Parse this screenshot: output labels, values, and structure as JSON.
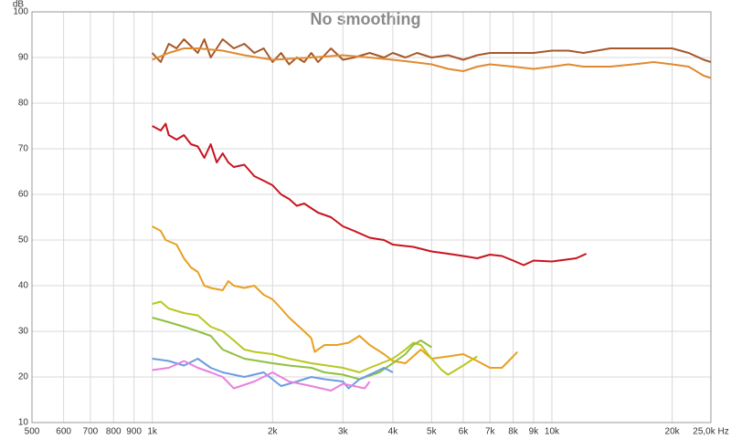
{
  "chart_data": {
    "type": "line",
    "title": "No smoothing",
    "y_label": "dB",
    "xscale": "log",
    "grid": true,
    "xlim": [
      500,
      25000
    ],
    "ylim": [
      10,
      100
    ],
    "xticks": [
      500,
      600,
      700,
      800,
      900,
      {
        "value": 1000,
        "label": "1k"
      },
      {
        "value": 2000,
        "label": "2k"
      },
      {
        "value": 3000,
        "label": "3k"
      },
      {
        "value": 4000,
        "label": "4k"
      },
      {
        "value": 5000,
        "label": "5k"
      },
      {
        "value": 6000,
        "label": "6k"
      },
      {
        "value": 7000,
        "label": "7k"
      },
      {
        "value": 8000,
        "label": "8k"
      },
      {
        "value": 9000,
        "label": "9k"
      },
      {
        "value": 10000,
        "label": "10k"
      },
      {
        "value": 20000,
        "label": "20k"
      },
      {
        "value": 25000,
        "label": "25,0k Hz"
      }
    ],
    "yticks": [
      10,
      20,
      30,
      40,
      50,
      60,
      70,
      80,
      90,
      100
    ],
    "series": [
      {
        "color": "#a6582a",
        "x": [
          1000,
          1050,
          1100,
          1150,
          1200,
          1300,
          1350,
          1400,
          1500,
          1600,
          1700,
          1800,
          1900,
          2000,
          2100,
          2200,
          2300,
          2400,
          2500,
          2600,
          2800,
          3000,
          3200,
          3500,
          3800,
          4000,
          4300,
          4600,
          5000,
          5500,
          6000,
          6500,
          7000,
          8000,
          9000,
          10000,
          11000,
          12000,
          14000,
          16000,
          18000,
          20000,
          22000,
          24000,
          25000
        ],
        "values": [
          91,
          89,
          93,
          92,
          94,
          91,
          94,
          90,
          94,
          92,
          93,
          91,
          92,
          89,
          91,
          88.5,
          90,
          89,
          91,
          89,
          92,
          89.5,
          90,
          91,
          90,
          91,
          90,
          91,
          90,
          90.5,
          89.5,
          90.5,
          91,
          91,
          91,
          91.5,
          91.5,
          91,
          92,
          92,
          92,
          92,
          91,
          89.5,
          89
        ]
      },
      {
        "color": "#df8a30",
        "x": [
          1000,
          1100,
          1200,
          1300,
          1500,
          1700,
          2000,
          2500,
          3000,
          3500,
          4000,
          4500,
          5000,
          5500,
          6000,
          6500,
          7000,
          8000,
          9000,
          10000,
          11000,
          12000,
          14000,
          16000,
          18000,
          20000,
          22000,
          24000,
          25000
        ],
        "values": [
          89.5,
          91,
          92,
          92,
          91.5,
          90.5,
          89.5,
          90,
          90.5,
          90,
          89.5,
          89,
          88.5,
          87.5,
          87,
          88,
          88.5,
          88,
          87.5,
          88,
          88.5,
          88,
          88,
          88.5,
          89,
          88.5,
          88,
          86,
          85.5
        ]
      },
      {
        "color": "#c8141e",
        "x": [
          1000,
          1050,
          1080,
          1100,
          1150,
          1200,
          1250,
          1300,
          1350,
          1400,
          1450,
          1500,
          1550,
          1600,
          1700,
          1800,
          1900,
          2000,
          2100,
          2200,
          2300,
          2400,
          2600,
          2800,
          3000,
          3200,
          3500,
          3800,
          4000,
          4500,
          5000,
          5500,
          6000,
          6500,
          7000,
          7500,
          8000,
          8500,
          9000,
          10000,
          11500,
          12200
        ],
        "values": [
          75,
          74,
          75.5,
          73,
          72,
          73,
          71,
          70.5,
          68,
          71,
          67,
          69,
          67,
          66,
          66.5,
          64,
          63,
          62,
          60,
          59,
          57.5,
          58,
          56,
          55,
          53,
          52,
          50.5,
          50,
          49,
          48.5,
          47.5,
          47,
          46.5,
          46,
          46.8,
          46.5,
          45.5,
          44.5,
          45.5,
          45.3,
          46,
          47
        ]
      },
      {
        "color": "#e8a020",
        "x": [
          1000,
          1050,
          1080,
          1150,
          1200,
          1250,
          1300,
          1350,
          1400,
          1500,
          1550,
          1600,
          1700,
          1800,
          1900,
          2000,
          2100,
          2200,
          2400,
          2500,
          2550,
          2700,
          2900,
          3100,
          3300,
          3500,
          3800,
          4000,
          4300,
          4700,
          5000,
          5500,
          6000,
          6500,
          7000,
          7500,
          8000,
          8200
        ],
        "values": [
          53,
          52,
          50,
          49,
          46,
          44,
          43,
          40,
          39.5,
          39,
          41,
          40,
          39.5,
          40,
          38,
          37,
          35,
          33,
          30,
          28.5,
          25.5,
          27,
          27,
          27.5,
          29,
          27,
          25,
          23.5,
          23,
          26,
          24,
          24.5,
          25,
          23.5,
          22,
          22,
          24.5,
          25.5
        ]
      },
      {
        "color": "#b8c820",
        "x": [
          1000,
          1050,
          1100,
          1200,
          1300,
          1400,
          1500,
          1600,
          1700,
          1800,
          2000,
          2200,
          2500,
          3000,
          3300,
          3500,
          4000,
          4300,
          4500,
          4700,
          5000,
          5300,
          5500,
          6000,
          6500
        ],
        "values": [
          36,
          36.5,
          35,
          34,
          33.5,
          31,
          30,
          28,
          26,
          25.5,
          25,
          24,
          23,
          22,
          21,
          22,
          24,
          26,
          27.5,
          27,
          24,
          21.5,
          20.5,
          22.5,
          24.5
        ]
      },
      {
        "color": "#90c040",
        "x": [
          1000,
          1100,
          1200,
          1300,
          1400,
          1500,
          1700,
          2000,
          2200,
          2500,
          2700,
          3000,
          3300,
          3700,
          4000,
          4300,
          4500,
          4700,
          5000
        ],
        "values": [
          33,
          32,
          31,
          30,
          29,
          26,
          24,
          23,
          22.5,
          22,
          21,
          20.5,
          19.5,
          21,
          23,
          25,
          27,
          28,
          26.5
        ]
      },
      {
        "color": "#6a9de0",
        "x": [
          1000,
          1100,
          1200,
          1300,
          1400,
          1500,
          1700,
          1900,
          2100,
          2300,
          2500,
          2700,
          3000,
          3100,
          3300,
          3600,
          3800,
          4000
        ],
        "values": [
          24,
          23.5,
          22.5,
          24,
          22,
          21,
          20,
          21,
          18,
          19,
          20,
          19.5,
          19,
          17.5,
          19.5,
          21,
          22,
          21
        ]
      },
      {
        "color": "#e880e0",
        "x": [
          1000,
          1100,
          1200,
          1300,
          1400,
          1500,
          1600,
          1800,
          2000,
          2200,
          2500,
          2800,
          3000,
          3200,
          3400,
          3500
        ],
        "values": [
          21.5,
          22,
          23.5,
          22,
          21,
          20,
          17.5,
          19,
          21,
          19,
          18,
          17,
          18.5,
          18,
          17.5,
          19
        ]
      }
    ]
  }
}
